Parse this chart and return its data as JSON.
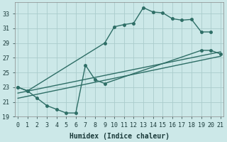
{
  "bg_color": "#cce8e8",
  "grid_color": "#aacccc",
  "line_color": "#2e6e66",
  "xlabel": "Humidex (Indice chaleur)",
  "xlim": [
    -0.3,
    21.3
  ],
  "ylim": [
    19,
    34.5
  ],
  "yticks": [
    19,
    21,
    23,
    25,
    27,
    29,
    31,
    33
  ],
  "xticks": [
    0,
    1,
    2,
    3,
    4,
    5,
    6,
    7,
    8,
    9,
    10,
    11,
    12,
    13,
    14,
    15,
    16,
    17,
    18,
    19,
    20,
    21
  ],
  "curve_top_x": [
    0,
    1,
    9,
    10,
    11,
    12,
    13,
    14,
    15,
    16,
    17,
    18,
    19,
    20
  ],
  "curve_top_y": [
    23.0,
    22.5,
    29.0,
    31.2,
    31.5,
    31.7,
    33.8,
    33.2,
    33.1,
    32.3,
    32.1,
    32.2,
    30.5,
    30.5
  ],
  "curve_bot_x": [
    0,
    1,
    2,
    3,
    4,
    5,
    6,
    7,
    8,
    9,
    19,
    20,
    21
  ],
  "curve_bot_y": [
    23.0,
    22.5,
    21.5,
    20.5,
    20.0,
    19.5,
    19.5,
    26.0,
    24.0,
    23.5,
    28.0,
    28.0,
    27.5
  ],
  "line1_x": [
    0,
    21
  ],
  "line1_y": [
    22.2,
    27.8
  ],
  "line2_x": [
    0,
    21
  ],
  "line2_y": [
    21.5,
    27.2
  ],
  "marker_size": 2.5,
  "linewidth": 1.0,
  "tick_fontsize": 6,
  "xlabel_fontsize": 7
}
